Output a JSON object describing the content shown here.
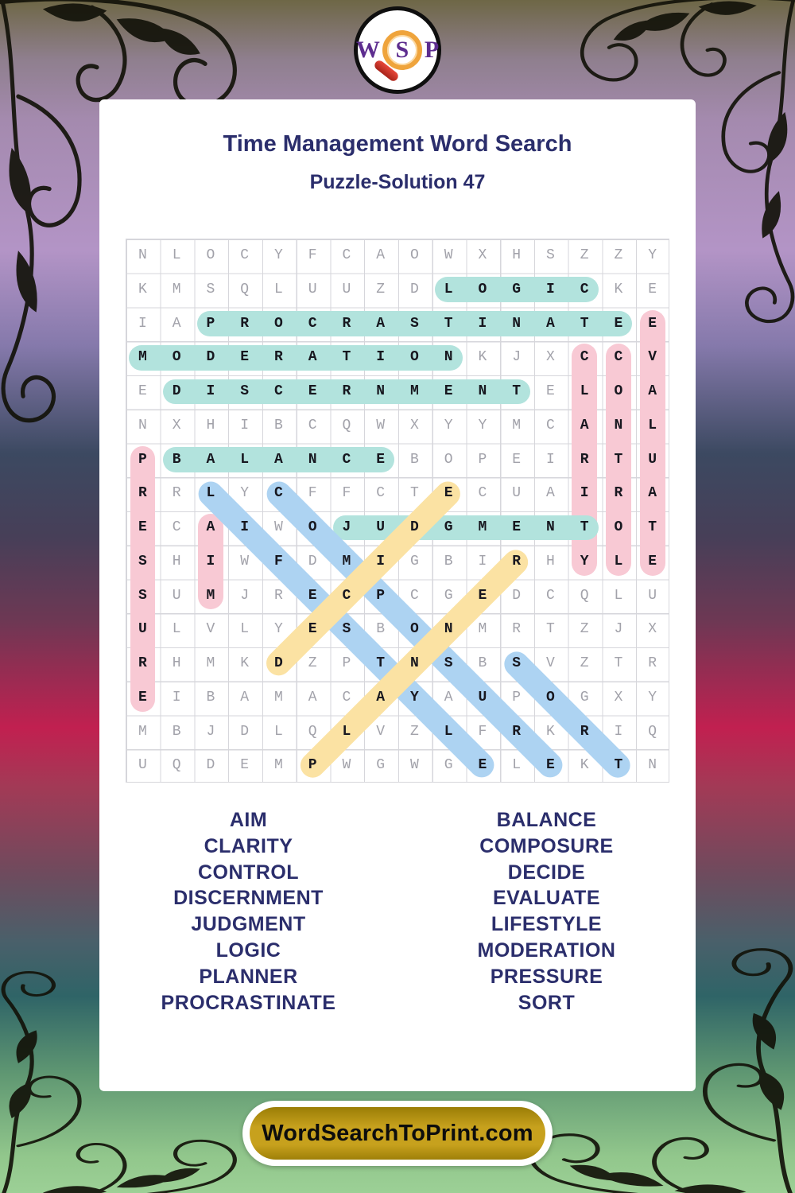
{
  "logo": {
    "w": "W",
    "s": "S",
    "p": "P"
  },
  "header": {
    "title": "Time Management Word Search",
    "subtitle": "Puzzle-Solution 47"
  },
  "grid": {
    "size": 16,
    "rows": [
      "NLOCYFCAOWXHSZZY",
      "KMSQLUUZDLOGICKE",
      "IAPROCRASTINATEE",
      "MODERATIONKJXCCV",
      "EDISCERNMENTELOA",
      "NXHIBCQWXYYMCANL",
      "PBALANCEBOPEIRTU",
      "RRLYCFFCTECUAIRA",
      "ECAIWOJUDGMENTOT",
      "SHIWFDMIGBIRHYLE",
      "SUMJRECPCGEDCQLU",
      "ULVLYESBONMRTZJX",
      "RHMKDZPTNSBSVZTR",
      "EIBAMACAYAUPOGXY",
      "MBJDLQLVZLFRKRIQ",
      "UQDEMPWGWGELEKTN"
    ],
    "palette": {
      "teal": "#b2e3dd",
      "pink": "#f8c9d4",
      "blue": "#add3f2",
      "yellow": "#fbe2a3"
    },
    "highlights": [
      {
        "word": "PRESSURE",
        "row": 7,
        "col": 1,
        "dir": "v",
        "color": "pink"
      },
      {
        "word": "AIM",
        "row": 9,
        "col": 3,
        "dir": "v",
        "color": "pink"
      },
      {
        "word": "CLARITY",
        "row": 4,
        "col": 14,
        "dir": "v",
        "color": "pink"
      },
      {
        "word": "CONTROL",
        "row": 4,
        "col": 15,
        "dir": "v",
        "color": "pink"
      },
      {
        "word": "EVALUATE",
        "row": 3,
        "col": 16,
        "dir": "v",
        "color": "pink"
      },
      {
        "word": "LOGIC",
        "row": 2,
        "col": 10,
        "dir": "h",
        "color": "teal"
      },
      {
        "word": "PROCRASTINATE",
        "row": 3,
        "col": 3,
        "dir": "h",
        "color": "teal"
      },
      {
        "word": "MODERATION",
        "row": 4,
        "col": 1,
        "dir": "h",
        "color": "teal"
      },
      {
        "word": "DISCERNMENT",
        "row": 5,
        "col": 2,
        "dir": "h",
        "color": "teal"
      },
      {
        "word": "BALANCE",
        "row": 7,
        "col": 2,
        "dir": "h",
        "color": "teal"
      },
      {
        "word": "JUDGMENT",
        "row": 9,
        "col": 7,
        "dir": "h",
        "color": "teal"
      },
      {
        "word": "LIFESTYLE",
        "row": 8,
        "col": 3,
        "dir": "dr",
        "color": "blue"
      },
      {
        "word": "COMPOSURE",
        "row": 8,
        "col": 5,
        "dir": "dr",
        "color": "blue"
      },
      {
        "word": "SORT",
        "row": 13,
        "col": 12,
        "dir": "dr",
        "color": "blue"
      },
      {
        "word": "DECIDE",
        "row": 13,
        "col": 5,
        "dir": "ur",
        "color": "yellow"
      },
      {
        "word": "PLANNER",
        "row": 16,
        "col": 6,
        "dir": "ur",
        "color": "yellow"
      }
    ]
  },
  "word_list": {
    "left": [
      "AIM",
      "CLARITY",
      "CONTROL",
      "DISCERNMENT",
      "JUDGMENT",
      "LOGIC",
      "PLANNER",
      "PROCRASTINATE"
    ],
    "right": [
      "BALANCE",
      "COMPOSURE",
      "DECIDE",
      "EVALUATE",
      "LIFESTYLE",
      "MODERATION",
      "PRESSURE",
      "SORT"
    ]
  },
  "footer": {
    "site": "WordSearchToPrint.com"
  },
  "colors": {
    "title_navy": "#2b2e6c",
    "letter_gray": "#a2a2aa",
    "letter_solved": "#17171f",
    "gold": "#c7a11d",
    "logo_purple": "#5d2d8f",
    "magnifier_orange": "#efa43c",
    "handle_red": "#c0392b"
  }
}
